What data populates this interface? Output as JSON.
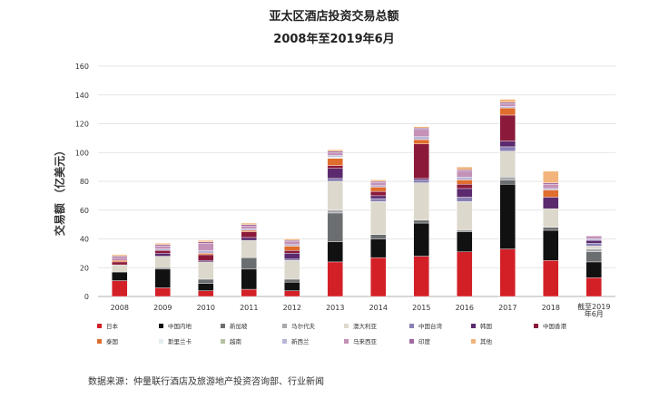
{
  "chart_data": {
    "type": "bar",
    "stacked": true,
    "title": "亚太区酒店投资交易总额",
    "subtitle": "2008年至2019年6月",
    "ylabel": "交易额 （亿美元）",
    "xlabel": "",
    "ylim": [
      0,
      160
    ],
    "yticks": [
      0,
      20,
      40,
      60,
      80,
      100,
      120,
      140,
      160
    ],
    "grid": true,
    "legend_position": "bottom",
    "categories": [
      "2008",
      "2009",
      "2010",
      "2011",
      "2012",
      "2013",
      "2014",
      "2015",
      "2016",
      "2017",
      "2018",
      "截至2019年6月"
    ],
    "series": [
      {
        "name": "日本",
        "color": "#d32027",
        "values": [
          11,
          6,
          4,
          5,
          4,
          24,
          27,
          28,
          31,
          33,
          25,
          13
        ]
      },
      {
        "name": "中国内地",
        "color": "#111111",
        "values": [
          6,
          13,
          5,
          14,
          6,
          14,
          13,
          23,
          14,
          45,
          21,
          11
        ]
      },
      {
        "name": "新加坡",
        "color": "#6b6e70",
        "values": [
          0,
          1,
          3,
          8,
          2,
          20,
          3,
          2,
          1,
          3,
          2,
          7
        ]
      },
      {
        "name": "马尔代夫",
        "color": "#a7a9ac",
        "values": [
          0,
          0,
          0,
          0,
          0,
          2,
          0,
          0,
          0,
          2,
          0,
          2
        ]
      },
      {
        "name": "澳大利亚",
        "color": "#dcd8cc",
        "values": [
          5,
          8,
          12,
          12,
          13,
          20,
          23,
          26,
          20,
          18,
          13,
          2
        ]
      },
      {
        "name": "中国台湾",
        "color": "#8a7fb3",
        "values": [
          0,
          0,
          0,
          0,
          1,
          2,
          2,
          2,
          3,
          3,
          0,
          2
        ]
      },
      {
        "name": "韩国",
        "color": "#5b2a6e",
        "values": [
          0,
          2,
          1,
          2,
          4,
          7,
          2,
          1,
          6,
          4,
          8,
          2
        ]
      },
      {
        "name": "中国香港",
        "color": "#8b1a3a",
        "values": [
          2,
          2,
          4,
          4,
          2,
          2,
          3,
          24,
          3,
          18,
          0,
          0
        ]
      },
      {
        "name": "泰国",
        "color": "#e06d2d",
        "values": [
          1,
          0,
          1,
          1,
          3,
          5,
          3,
          3,
          3,
          5,
          5,
          0
        ]
      },
      {
        "name": "斯里兰卡",
        "color": "#e4ecef",
        "values": [
          0,
          0,
          0,
          0,
          0,
          1,
          0,
          0,
          0,
          0,
          0,
          0
        ]
      },
      {
        "name": "越南",
        "color": "#b5c2a1",
        "values": [
          0,
          0,
          0,
          0,
          0,
          0,
          0,
          0,
          0,
          0,
          0,
          0
        ]
      },
      {
        "name": "新西兰",
        "color": "#b7b5d9",
        "values": [
          0,
          1,
          2,
          1,
          1,
          1,
          1,
          2,
          2,
          1,
          1,
          1
        ]
      },
      {
        "name": "马来西亚",
        "color": "#c491b7",
        "values": [
          2,
          2,
          5,
          2,
          2,
          2,
          2,
          5,
          4,
          2,
          3,
          2
        ]
      },
      {
        "name": "印度",
        "color": "#a06aa0",
        "values": [
          1,
          1,
          1,
          1,
          1,
          1,
          1,
          1,
          1,
          1,
          1,
          0
        ]
      },
      {
        "name": "其他",
        "color": "#f2b47a",
        "values": [
          1,
          1,
          1,
          1,
          1,
          1,
          1,
          1,
          2,
          2,
          8,
          0
        ]
      }
    ]
  },
  "source": "数据来源：仲量联行酒店及旅游地产投资咨询部、行业新闻"
}
